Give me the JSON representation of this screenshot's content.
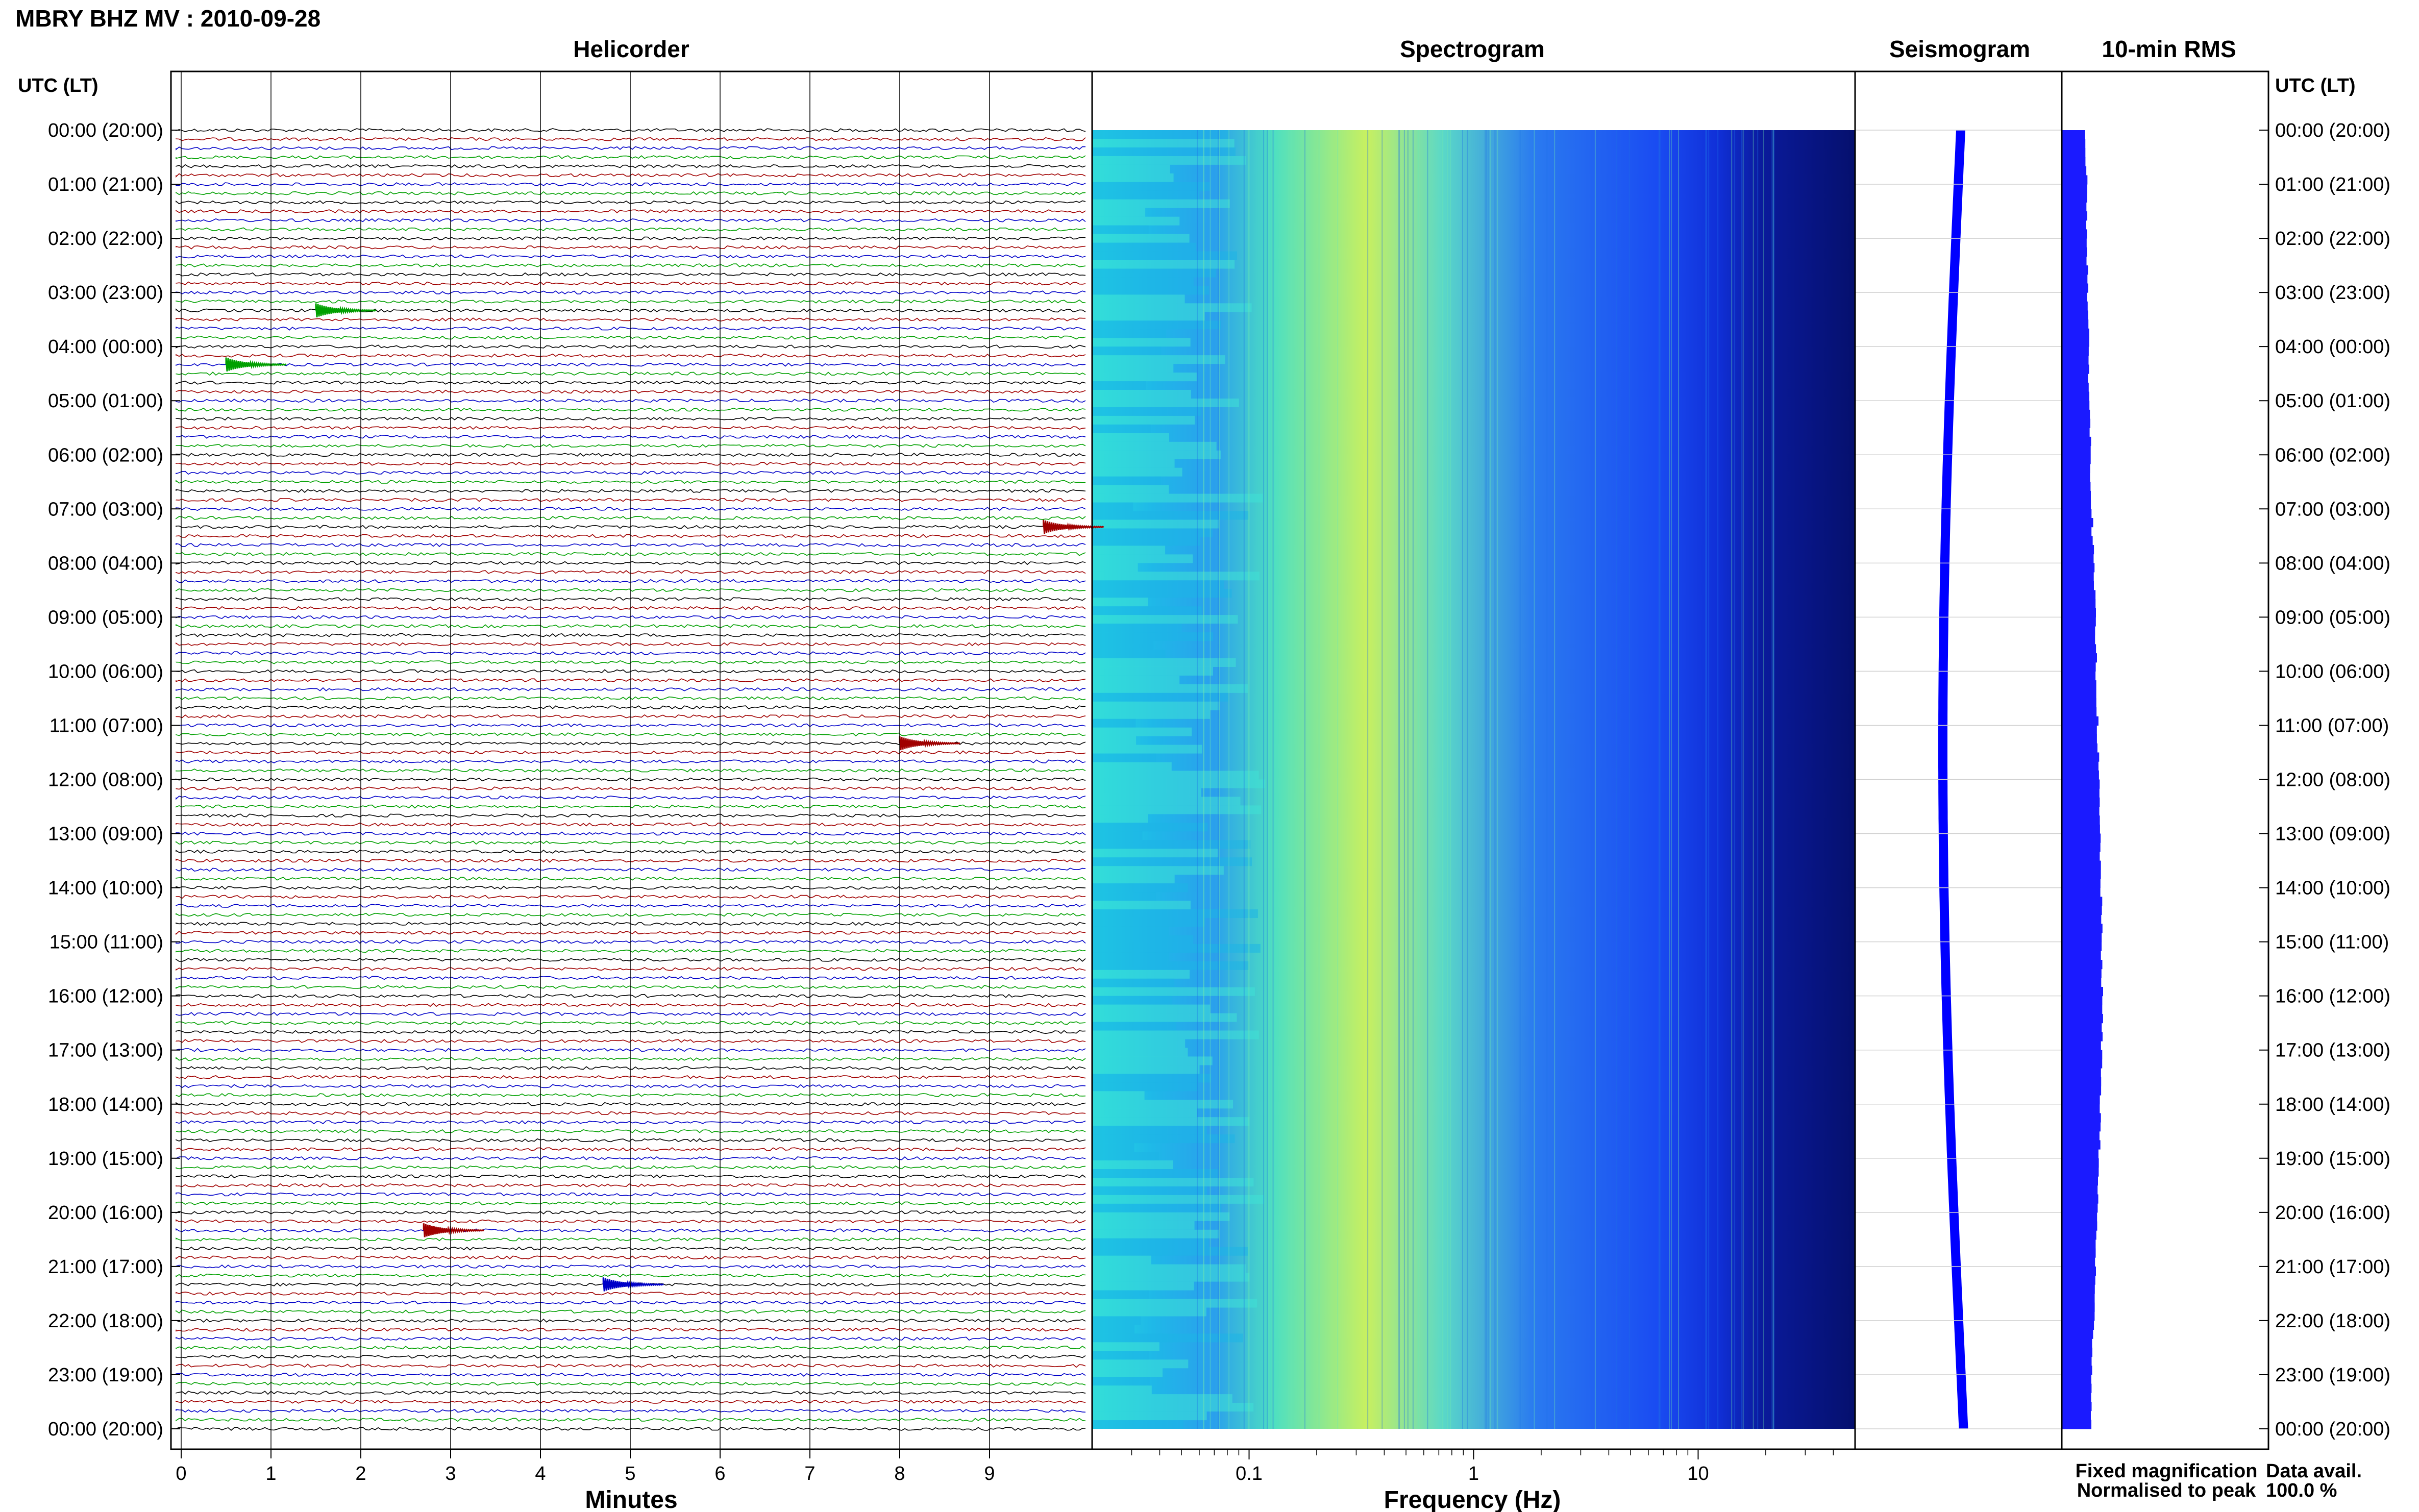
{
  "chart_data": {
    "type": "helicorder",
    "title": "MBRY BHZ MV : 2010-09-28",
    "panels": [
      {
        "name": "Helicorder",
        "xlabel": "Minutes",
        "x_ticks": [
          "0",
          "1",
          "2",
          "3",
          "4",
          "5",
          "6",
          "7",
          "8",
          "9"
        ],
        "xlim": [
          0,
          10
        ]
      },
      {
        "name": "Spectrogram",
        "xlabel": "Frequency (Hz)",
        "x_ticks": [
          "0.1",
          "1",
          "10"
        ],
        "x_scale": "log",
        "xlim": [
          0.02,
          50
        ]
      },
      {
        "name": "Seismogram"
      },
      {
        "name": "10-min RMS"
      }
    ],
    "time_axis_label": "UTC (LT)",
    "time_labels": [
      "00:00 (20:00)",
      "01:00 (21:00)",
      "02:00 (22:00)",
      "03:00 (23:00)",
      "04:00 (00:00)",
      "05:00 (01:00)",
      "06:00 (02:00)",
      "07:00 (03:00)",
      "08:00 (04:00)",
      "09:00 (05:00)",
      "10:00 (06:00)",
      "11:00 (07:00)",
      "12:00 (08:00)",
      "13:00 (09:00)",
      "14:00 (10:00)",
      "15:00 (11:00)",
      "16:00 (12:00)",
      "17:00 (13:00)",
      "18:00 (14:00)",
      "19:00 (15:00)",
      "20:00 (16:00)",
      "21:00 (17:00)",
      "22:00 (18:00)",
      "23:00 (19:00)",
      "00:00 (20:00)"
    ],
    "trace_colors": [
      "#000000",
      "#a00000",
      "#0000c8",
      "#00a000"
    ],
    "traces_per_hour": 6,
    "events": [
      {
        "hour": 3,
        "minute": 1.5,
        "color": "#00a000"
      },
      {
        "hour": 4,
        "minute": 0.5,
        "color": "#00a000"
      },
      {
        "hour": 7,
        "minute": 9.6,
        "color": "#a00000"
      },
      {
        "hour": 11,
        "minute": 8.0,
        "color": "#a00000"
      },
      {
        "hour": 20,
        "minute": 2.7,
        "color": "#a00000"
      },
      {
        "hour": 21,
        "minute": 4.7,
        "color": "#0000c8"
      }
    ],
    "rms_profile": [
      0.42,
      0.43,
      0.44,
      0.45,
      0.46,
      0.48,
      0.5,
      0.52,
      0.55,
      0.58,
      0.6,
      0.62,
      0.64,
      0.66,
      0.68,
      0.69,
      0.7,
      0.69,
      0.67,
      0.64,
      0.61,
      0.58,
      0.55,
      0.52,
      0.5
    ],
    "legend": [
      "Fixed magnification",
      "Normalised to peak"
    ],
    "legend_colors": [
      "#0000ff",
      "#ff0000"
    ],
    "data_avail_label": "Data avail.",
    "data_avail_value": "100.0 %"
  }
}
